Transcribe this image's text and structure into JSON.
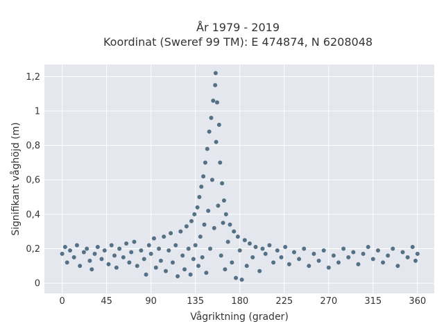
{
  "chart_data": {
    "type": "scatter",
    "title_line1": "År 1979 - 2019",
    "title_line2": "Koordinat (Sweref 99 TM): E 474874, N 6208048",
    "xlabel": "Vågriktning (grader)",
    "ylabel": "Signifikant våghöjd (m)",
    "xlim": [
      -18,
      377
    ],
    "ylim": [
      -0.06,
      1.27
    ],
    "x_ticks": [
      {
        "value": 0,
        "label": "0"
      },
      {
        "value": 45,
        "label": "45"
      },
      {
        "value": 90,
        "label": "90"
      },
      {
        "value": 135,
        "label": "135"
      },
      {
        "value": 180,
        "label": "180"
      },
      {
        "value": 225,
        "label": "225"
      },
      {
        "value": 270,
        "label": "270"
      },
      {
        "value": 315,
        "label": "315"
      },
      {
        "value": 360,
        "label": "360"
      }
    ],
    "y_ticks": [
      {
        "value": 0,
        "label": "0"
      },
      {
        "value": 0.2,
        "label": "0,2"
      },
      {
        "value": 0.4,
        "label": "0,4"
      },
      {
        "value": 0.6,
        "label": "0,6"
      },
      {
        "value": 0.8,
        "label": "0,8"
      },
      {
        "value": 1.0,
        "label": "1"
      },
      {
        "value": 1.2,
        "label": "1,2"
      }
    ],
    "grid": true,
    "background_color": "#e5e7ee",
    "grid_color": "#ffffff",
    "marker_color": "#2f5369",
    "series": [
      {
        "points": [
          [
            0,
            0.17
          ],
          [
            3,
            0.21
          ],
          [
            5,
            0.12
          ],
          [
            8,
            0.19
          ],
          [
            12,
            0.15
          ],
          [
            15,
            0.22
          ],
          [
            18,
            0.1
          ],
          [
            22,
            0.18
          ],
          [
            25,
            0.2
          ],
          [
            28,
            0.13
          ],
          [
            30,
            0.08
          ],
          [
            33,
            0.17
          ],
          [
            36,
            0.21
          ],
          [
            40,
            0.14
          ],
          [
            43,
            0.19
          ],
          [
            47,
            0.11
          ],
          [
            50,
            0.22
          ],
          [
            53,
            0.16
          ],
          [
            55,
            0.09
          ],
          [
            58,
            0.2
          ],
          [
            62,
            0.15
          ],
          [
            65,
            0.23
          ],
          [
            68,
            0.12
          ],
          [
            70,
            0.18
          ],
          [
            73,
            0.24
          ],
          [
            76,
            0.1
          ],
          [
            80,
            0.19
          ],
          [
            83,
            0.14
          ],
          [
            85,
            0.05
          ],
          [
            88,
            0.22
          ],
          [
            90,
            0.17
          ],
          [
            93,
            0.26
          ],
          [
            95,
            0.09
          ],
          [
            98,
            0.2
          ],
          [
            100,
            0.13
          ],
          [
            103,
            0.27
          ],
          [
            105,
            0.07
          ],
          [
            108,
            0.19
          ],
          [
            110,
            0.29
          ],
          [
            112,
            0.12
          ],
          [
            115,
            0.22
          ],
          [
            117,
            0.04
          ],
          [
            120,
            0.3
          ],
          [
            122,
            0.16
          ],
          [
            124,
            0.08
          ],
          [
            126,
            0.33
          ],
          [
            128,
            0.2
          ],
          [
            130,
            0.05
          ],
          [
            131,
            0.36
          ],
          [
            133,
            0.14
          ],
          [
            134,
            0.4
          ],
          [
            135,
            0.22
          ],
          [
            137,
            0.44
          ],
          [
            138,
            0.1
          ],
          [
            139,
            0.5
          ],
          [
            140,
            0.27
          ],
          [
            141,
            0.56
          ],
          [
            142,
            0.15
          ],
          [
            143,
            0.62
          ],
          [
            144,
            0.34
          ],
          [
            145,
            0.7
          ],
          [
            146,
            0.06
          ],
          [
            147,
            0.78
          ],
          [
            148,
            0.42
          ],
          [
            149,
            0.88
          ],
          [
            150,
            0.2
          ],
          [
            151,
            0.96
          ],
          [
            152,
            0.6
          ],
          [
            153,
            1.06
          ],
          [
            154,
            0.32
          ],
          [
            155,
            1.15
          ],
          [
            155.5,
            1.22
          ],
          [
            156,
            0.82
          ],
          [
            157,
            1.05
          ],
          [
            158,
            0.45
          ],
          [
            159,
            0.92
          ],
          [
            160,
            0.7
          ],
          [
            161,
            0.16
          ],
          [
            162,
            0.58
          ],
          [
            163,
            0.35
          ],
          [
            164,
            0.48
          ],
          [
            165,
            0.08
          ],
          [
            166,
            0.4
          ],
          [
            168,
            0.24
          ],
          [
            170,
            0.34
          ],
          [
            172,
            0.12
          ],
          [
            174,
            0.3
          ],
          [
            176,
            0.03
          ],
          [
            178,
            0.27
          ],
          [
            180,
            0.19
          ],
          [
            182,
            0.02
          ],
          [
            185,
            0.25
          ],
          [
            187,
            0.1
          ],
          [
            190,
            0.23
          ],
          [
            193,
            0.15
          ],
          [
            196,
            0.21
          ],
          [
            200,
            0.07
          ],
          [
            203,
            0.2
          ],
          [
            206,
            0.17
          ],
          [
            210,
            0.22
          ],
          [
            214,
            0.12
          ],
          [
            218,
            0.19
          ],
          [
            222,
            0.15
          ],
          [
            226,
            0.21
          ],
          [
            230,
            0.11
          ],
          [
            235,
            0.18
          ],
          [
            240,
            0.14
          ],
          [
            245,
            0.2
          ],
          [
            250,
            0.1
          ],
          [
            255,
            0.17
          ],
          [
            260,
            0.13
          ],
          [
            265,
            0.19
          ],
          [
            270,
            0.09
          ],
          [
            275,
            0.16
          ],
          [
            280,
            0.12
          ],
          [
            285,
            0.2
          ],
          [
            290,
            0.15
          ],
          [
            295,
            0.18
          ],
          [
            300,
            0.11
          ],
          [
            305,
            0.17
          ],
          [
            310,
            0.21
          ],
          [
            315,
            0.14
          ],
          [
            320,
            0.19
          ],
          [
            325,
            0.12
          ],
          [
            330,
            0.16
          ],
          [
            335,
            0.2
          ],
          [
            340,
            0.1
          ],
          [
            345,
            0.18
          ],
          [
            350,
            0.15
          ],
          [
            355,
            0.21
          ],
          [
            358,
            0.13
          ],
          [
            360,
            0.17
          ]
        ]
      }
    ]
  }
}
